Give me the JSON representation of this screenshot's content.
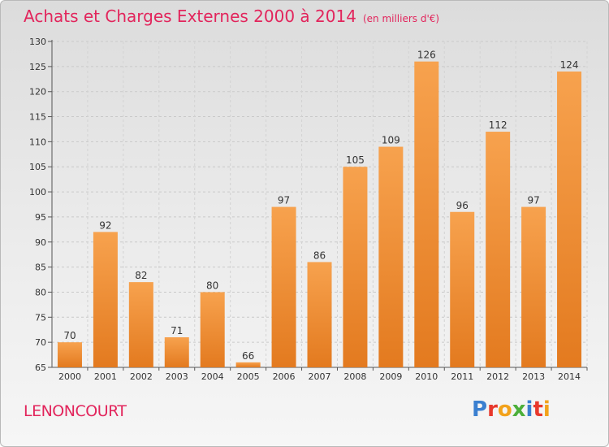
{
  "title": "Achats et Charges Externes 2000 à 2014",
  "subtitle": "(en milliers d'€)",
  "city": "LENONCOURT",
  "logo": [
    "P",
    "r",
    "o",
    "x",
    "i",
    "t",
    "i"
  ],
  "logo_colors": [
    "#3a7fd0",
    "#e8382c",
    "#f2a21b",
    "#4caf3a",
    "#3a7fd0",
    "#e8382c",
    "#f2a21b"
  ],
  "colors": {
    "bar_top": "#f7a24e",
    "bar_bottom": "#e37a1f",
    "accent": "#e2255c"
  },
  "chart_data": {
    "type": "bar",
    "categories": [
      "2000",
      "2001",
      "2002",
      "2003",
      "2004",
      "2005",
      "2006",
      "2007",
      "2008",
      "2009",
      "2010",
      "2011",
      "2012",
      "2013",
      "2014"
    ],
    "values": [
      70,
      92,
      82,
      71,
      80,
      66,
      97,
      86,
      105,
      109,
      126,
      96,
      112,
      97,
      124
    ],
    "ylim": [
      65,
      130
    ],
    "yticks": [
      65,
      70,
      75,
      80,
      85,
      90,
      95,
      100,
      105,
      110,
      115,
      120,
      125,
      130
    ],
    "grid": true
  }
}
